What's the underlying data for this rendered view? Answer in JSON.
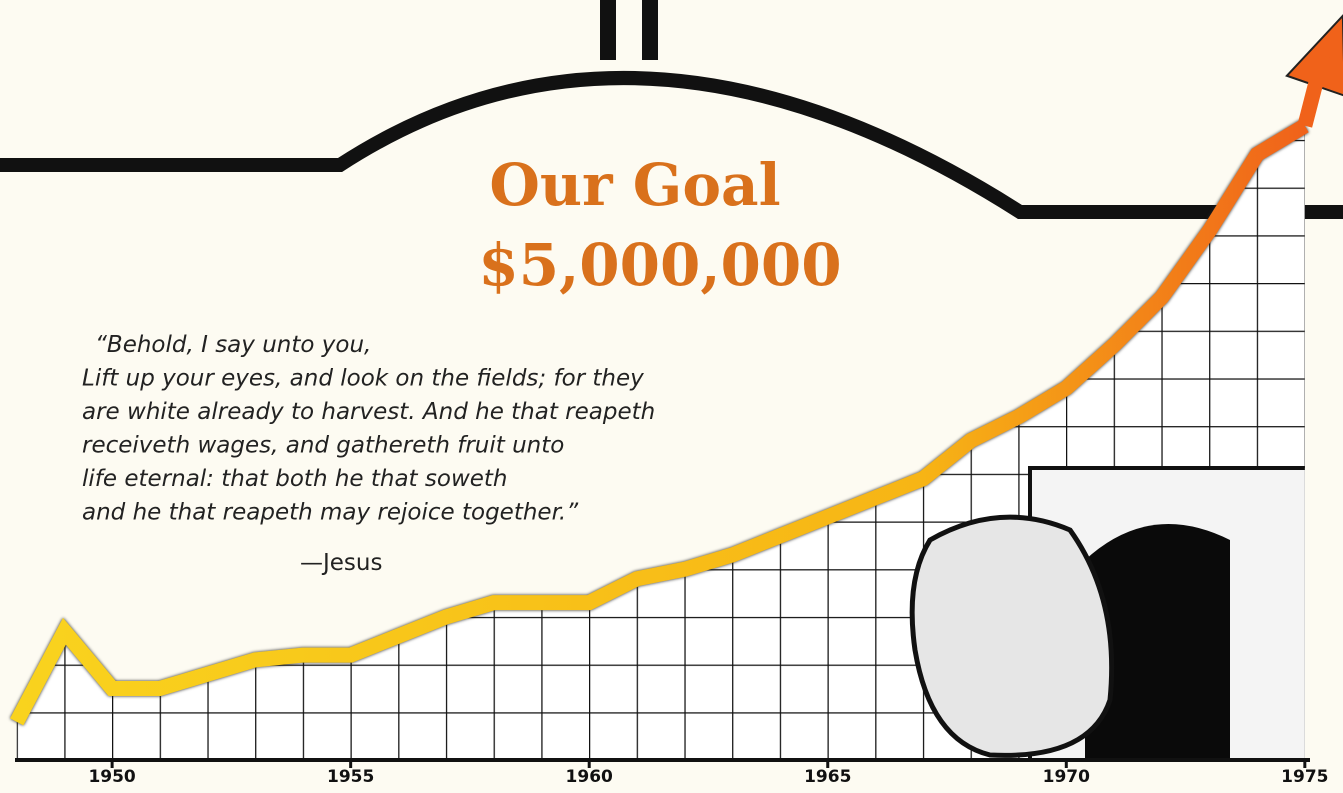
{
  "chart_data": {
    "type": "line",
    "title": "Our Goal",
    "subtitle": "$5,000,000",
    "quote": [
      "“Behold, I say unto you,",
      "Lift up your eyes, and look on the fields; for they",
      "are white already to harvest. And he that reapeth",
      "receiveth wages, and gathereth fruit unto",
      "life eternal: that both he that soweth",
      "and he that reapeth may rejoice together.”"
    ],
    "attribution": "—Jesus",
    "x": [
      1948,
      1949,
      1950,
      1951,
      1952,
      1953,
      1954,
      1955,
      1956,
      1957,
      1958,
      1959,
      1960,
      1961,
      1962,
      1963,
      1964,
      1965,
      1966,
      1967,
      1968,
      1969,
      1970,
      1971,
      1972,
      1973,
      1974,
      1975
    ],
    "series": [
      {
        "color": "#f7b515",
        "values": [
          0.8,
          2.7,
          1.5,
          1.5,
          1.8,
          2.1,
          2.2,
          2.2,
          2.6,
          3.0,
          3.3,
          3.3,
          3.3,
          3.8,
          4.0,
          4.3,
          4.7,
          5.1,
          5.5,
          5.9,
          6.7,
          7.2,
          7.8,
          8.7,
          9.7,
          11.1,
          12.7,
          13.3
        ]
      }
    ],
    "xlim": [
      1947.65,
      1975.8
    ],
    "xticks": [
      1950,
      1955,
      1960,
      1965,
      1970,
      1975
    ],
    "ylim": [
      0,
      16
    ],
    "grid": true
  }
}
